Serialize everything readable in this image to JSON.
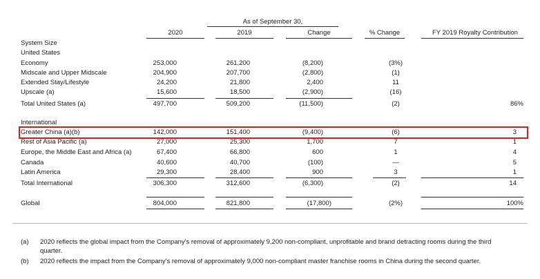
{
  "header": {
    "as_of": "As of September 30,",
    "col_2020": "2020",
    "col_2019": "2019",
    "col_change": "Change",
    "col_pct": "% Change",
    "col_royalty": "FY 2019 Royalty Contribution"
  },
  "sections": {
    "system_size": "System Size",
    "united_states": "United States",
    "international": "International"
  },
  "rows": [
    {
      "label": "Economy",
      "v2020": "253,000",
      "v2019": "261,200",
      "change": "(8,200)",
      "pct": "(3%)",
      "royalty": ""
    },
    {
      "label": "Midscale and Upper Midscale",
      "v2020": "204,900",
      "v2019": "207,700",
      "change": "(2,800)",
      "pct": "(1)",
      "royalty": ""
    },
    {
      "label": "Extended Stay/Lifestyle",
      "v2020": "24,200",
      "v2019": "21,800",
      "change": "2,400",
      "pct": "11",
      "royalty": ""
    },
    {
      "label": "Upscale (a)",
      "v2020": "15,600",
      "v2019": "18,500",
      "change": "(2,900)",
      "pct": "(16)",
      "royalty": ""
    },
    {
      "label": "Total United States  (a)",
      "v2020": "497,700",
      "v2019": "509,200",
      "change": "(11,500)",
      "pct": "(2)",
      "royalty": "86%"
    },
    {
      "label": "Greater China (a)(b)",
      "v2020": "142,000",
      "v2019": "151,400",
      "change": "(9,400)",
      "pct": "(6)",
      "royalty": "3"
    },
    {
      "label": "Rest of Asia Pacific (a)",
      "v2020": "27,000",
      "v2019": "25,300",
      "change": "1,700",
      "pct": "7",
      "royalty": "1"
    },
    {
      "label": "Europe, the Middle East and Africa (a)",
      "v2020": "67,400",
      "v2019": "66,800",
      "change": "600",
      "pct": "1",
      "royalty": "4"
    },
    {
      "label": "Canada",
      "v2020": "40,600",
      "v2019": "40,700",
      "change": "(100)",
      "pct": "—",
      "royalty": "5"
    },
    {
      "label": "Latin America",
      "v2020": "29,300",
      "v2019": "28,400",
      "change": "900",
      "pct": "3",
      "royalty": "1"
    },
    {
      "label": "Total International",
      "v2020": "306,300",
      "v2019": "312,600",
      "change": "(6,300)",
      "pct": "(2)",
      "royalty": "14"
    },
    {
      "label": "Global",
      "v2020": "804,000",
      "v2019": "821,800",
      "change": "(17,800)",
      "pct": "(2%)",
      "royalty": "100%"
    }
  ],
  "footnotes": [
    {
      "mark": "(a)",
      "text": "2020 reflects the global impact from the Company's removal of approximately 9,200 non-compliant, unprofitable and brand detracting rooms during the third",
      "text2": "quarter."
    },
    {
      "mark": "(b)",
      "text": "2020 reflects the impact from the Company's removal of approximately 9,000 non-compliant master franchise rooms in China during the second quarter.",
      "text2": ""
    }
  ]
}
